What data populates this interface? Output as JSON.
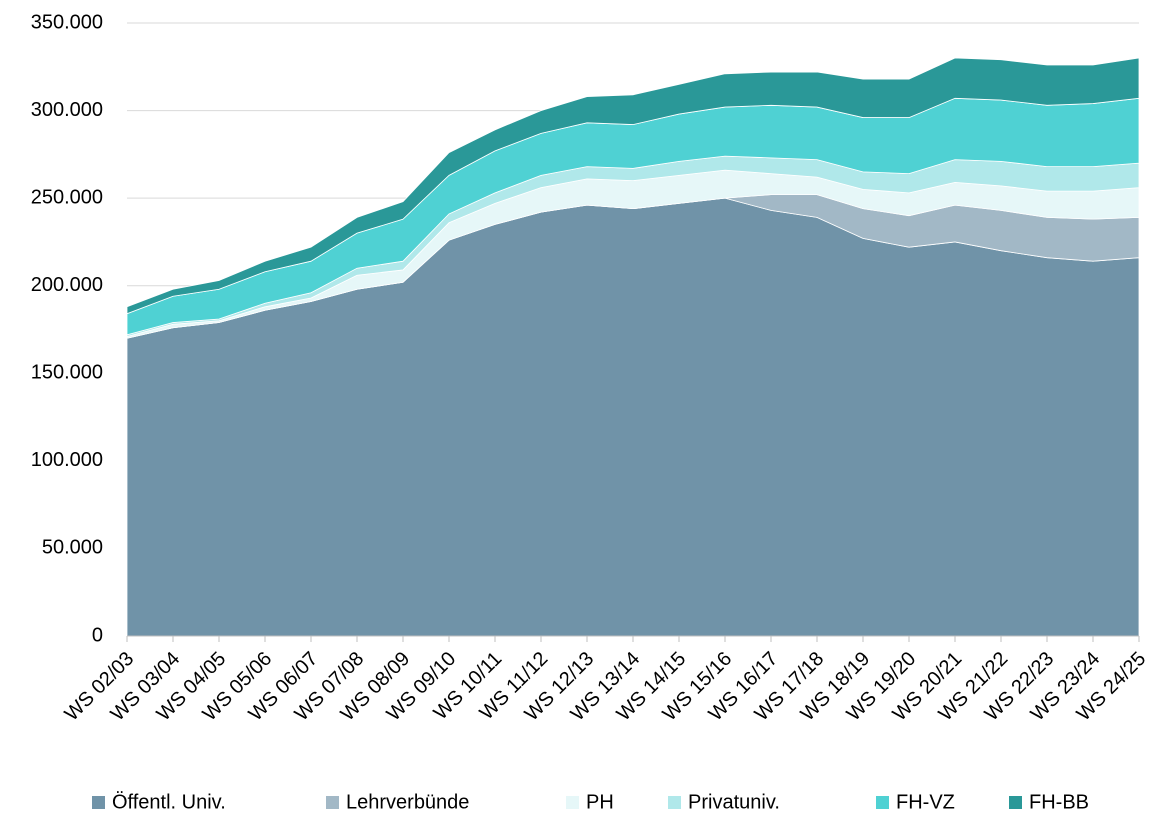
{
  "chart_data": {
    "type": "stacked_area",
    "categories": [
      "WS 02/03",
      "WS 03/04",
      "WS 04/05",
      "WS 05/06",
      "WS 06/07",
      "WS 07/08",
      "WS 08/09",
      "WS 09/10",
      "WS 10/11",
      "WS 11/12",
      "WS 12/13",
      "WS 13/14",
      "WS 14/15",
      "WS 15/16",
      "WS 16/17",
      "WS 17/18",
      "WS 18/19",
      "WS 19/20",
      "WS 20/21",
      "WS 21/22",
      "WS 22/23",
      "WS 23/24",
      "WS 24/25"
    ],
    "series": [
      {
        "name": "Öffentl. Univ.",
        "color": "#7093a8",
        "values": [
          170000,
          176000,
          179000,
          186000,
          191000,
          198000,
          202000,
          226000,
          235000,
          242000,
          246000,
          244000,
          247000,
          250000,
          243000,
          239000,
          227000,
          222000,
          225000,
          220000,
          216000,
          214000,
          216000
        ]
      },
      {
        "name": "Lehrverbünde",
        "color": "#a2b8c6",
        "values": [
          0,
          0,
          0,
          0,
          0,
          0,
          0,
          0,
          0,
          0,
          0,
          0,
          0,
          0,
          9000,
          13000,
          17000,
          18000,
          21000,
          23000,
          23000,
          24000,
          23000
        ]
      },
      {
        "name": "PH",
        "color": "#e6f7f8",
        "values": [
          1000,
          2000,
          1000,
          2000,
          2000,
          8000,
          7000,
          10000,
          12000,
          14000,
          15000,
          16000,
          16000,
          16000,
          12000,
          10000,
          11000,
          13000,
          13000,
          14000,
          15000,
          16000,
          17000
        ]
      },
      {
        "name": "Privatuniv.",
        "color": "#b0e8ea",
        "values": [
          1000,
          1000,
          1000,
          2000,
          3000,
          4000,
          5000,
          5000,
          6000,
          7000,
          7000,
          7000,
          8000,
          8000,
          9000,
          10000,
          10000,
          11000,
          13000,
          14000,
          14000,
          14000,
          14000
        ]
      },
      {
        "name": "FH-VZ",
        "color": "#4fd1d3",
        "values": [
          12000,
          15000,
          17000,
          18000,
          18000,
          20000,
          24000,
          22000,
          24000,
          24000,
          25000,
          25000,
          27000,
          28000,
          30000,
          30000,
          31000,
          32000,
          35000,
          35000,
          35000,
          36000,
          37000
        ]
      },
      {
        "name": "FH-BB",
        "color": "#2a9898",
        "values": [
          4000,
          4000,
          5000,
          6000,
          8000,
          9000,
          10000,
          13000,
          12000,
          13000,
          15000,
          17000,
          17000,
          19000,
          19000,
          20000,
          22000,
          22000,
          23000,
          23000,
          23000,
          22000,
          23000
        ]
      }
    ],
    "ylim": [
      0,
      350000
    ],
    "yticks": [
      0,
      {
        "value": 50000,
        "label": "50.000"
      },
      {
        "value": 100000,
        "label": "100.000"
      },
      {
        "value": 150000,
        "label": "150.000"
      },
      {
        "value": 200000,
        "label": "200.000"
      },
      {
        "value": 250000,
        "label": "250.000"
      },
      {
        "value": 300000,
        "label": "300.000"
      },
      {
        "value": 350000,
        "label": "350.000"
      }
    ],
    "grid": true,
    "legend": "bottom"
  }
}
